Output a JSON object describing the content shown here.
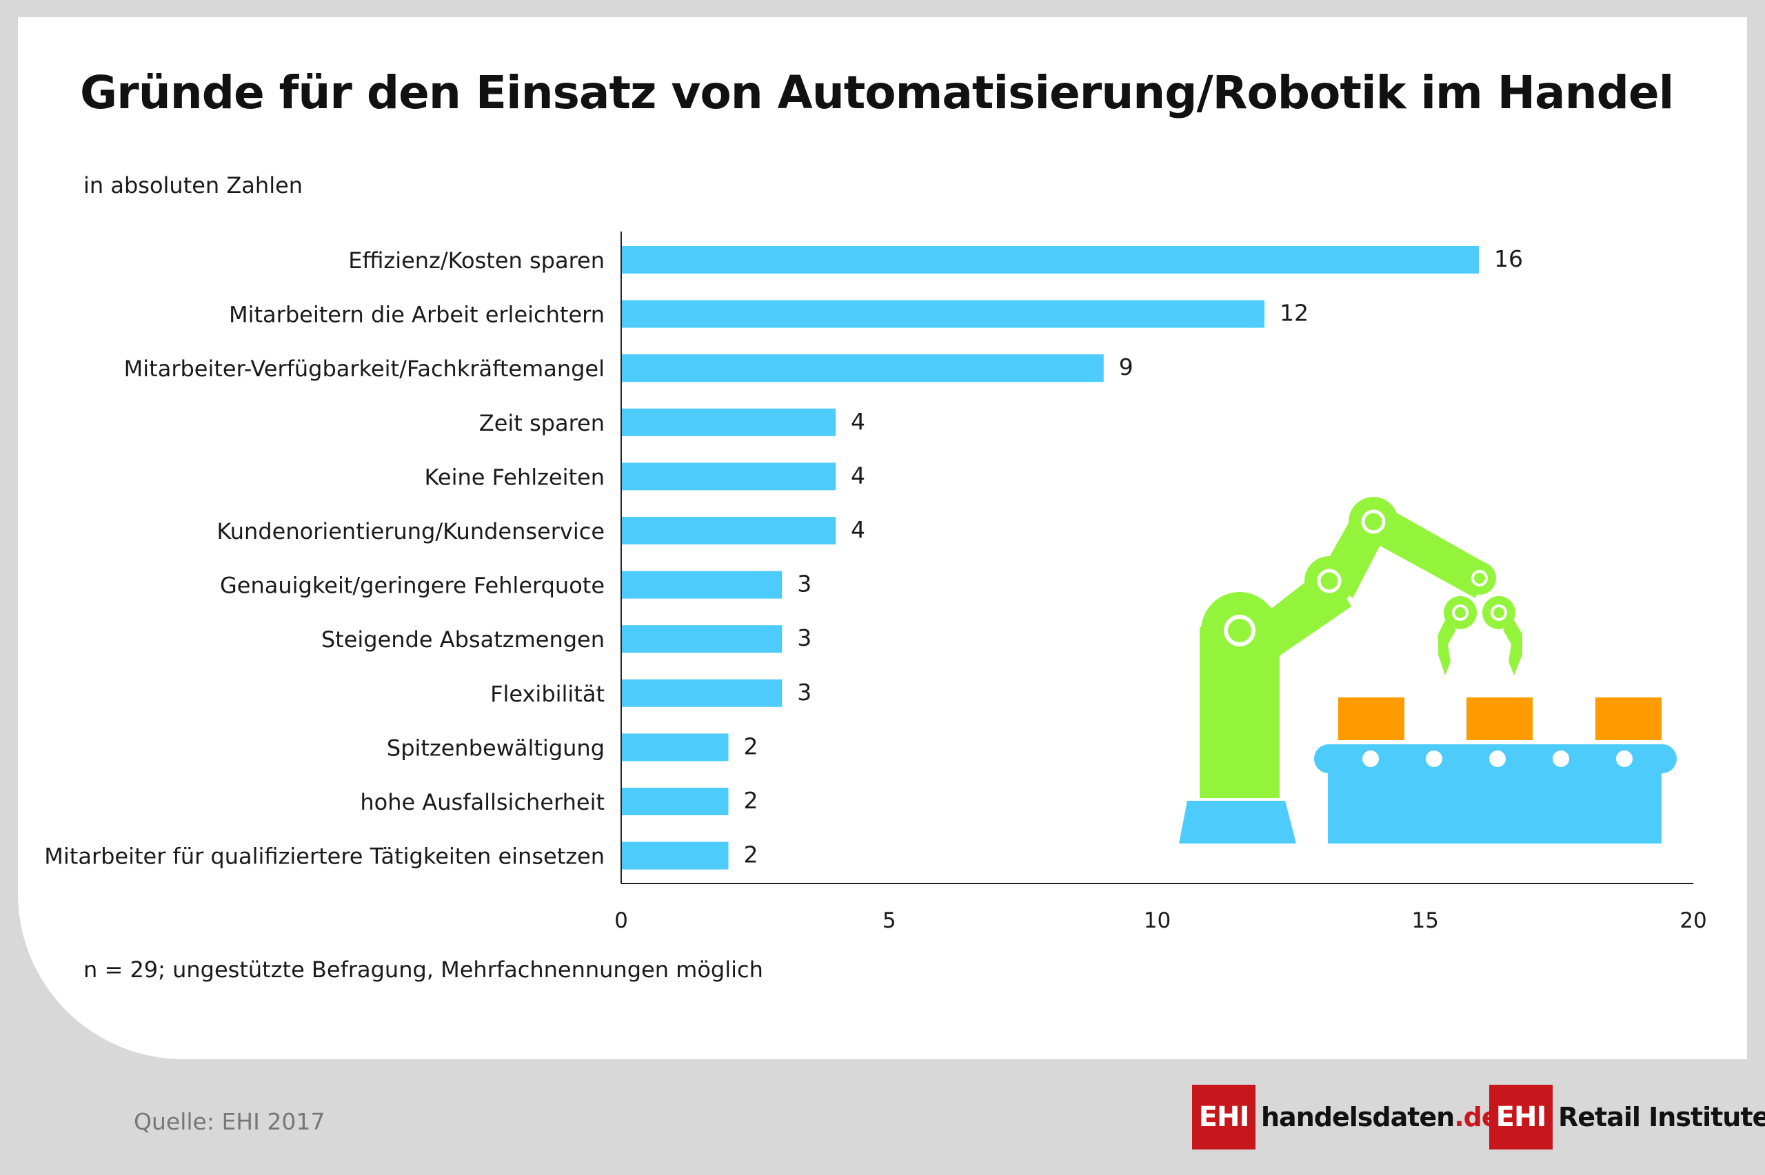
{
  "title": "Gründe für den Einsatz von Automatisierung/Robotik im Handel",
  "subtitle": "in absoluten Zahlen",
  "footnote": "n = 29; ungestützte Befragung, Mehrfachnennungen möglich",
  "source": "Quelle: EHI 2017",
  "logos": {
    "handelsdaten_box": "EHI",
    "handelsdaten_main": "handelsdaten",
    "handelsdaten_tld": ".de",
    "retail_box": "EHI",
    "retail_text": "Retail Institute",
    "retail_reg": "®"
  },
  "colors": {
    "bar": "#4dcbfb",
    "robot_arm": "#94f43c",
    "box": "#ff9a00",
    "conveyor": "#4dcbfb",
    "brand_red": "#c8161d"
  },
  "illustration": {
    "icon": "robot-arm-conveyor-illustration"
  },
  "chart_data": {
    "type": "bar",
    "orientation": "horizontal",
    "categories": [
      "Effizienz/Kosten sparen",
      "Mitarbeitern die Arbeit erleichtern",
      "Mitarbeiter-Verfügbarkeit/Fachkräftemangel",
      "Zeit sparen",
      "Keine Fehlzeiten",
      "Kundenorientierung/Kundenservice",
      "Genauigkeit/geringere Fehlerquote",
      "Steigende Absatzmengen",
      "Flexibilität",
      "Spitzenbewältigung",
      "hohe Ausfallsicherheit",
      "Mitarbeiter für qualifiziertere Tätigkeiten einsetzen"
    ],
    "values": [
      16,
      12,
      9,
      4,
      4,
      4,
      3,
      3,
      3,
      2,
      2,
      2
    ],
    "xlim": [
      0,
      20
    ],
    "xticks": [
      0,
      5,
      10,
      15,
      20
    ],
    "xlabel": "",
    "ylabel": "",
    "grid": false,
    "legend": "none"
  }
}
